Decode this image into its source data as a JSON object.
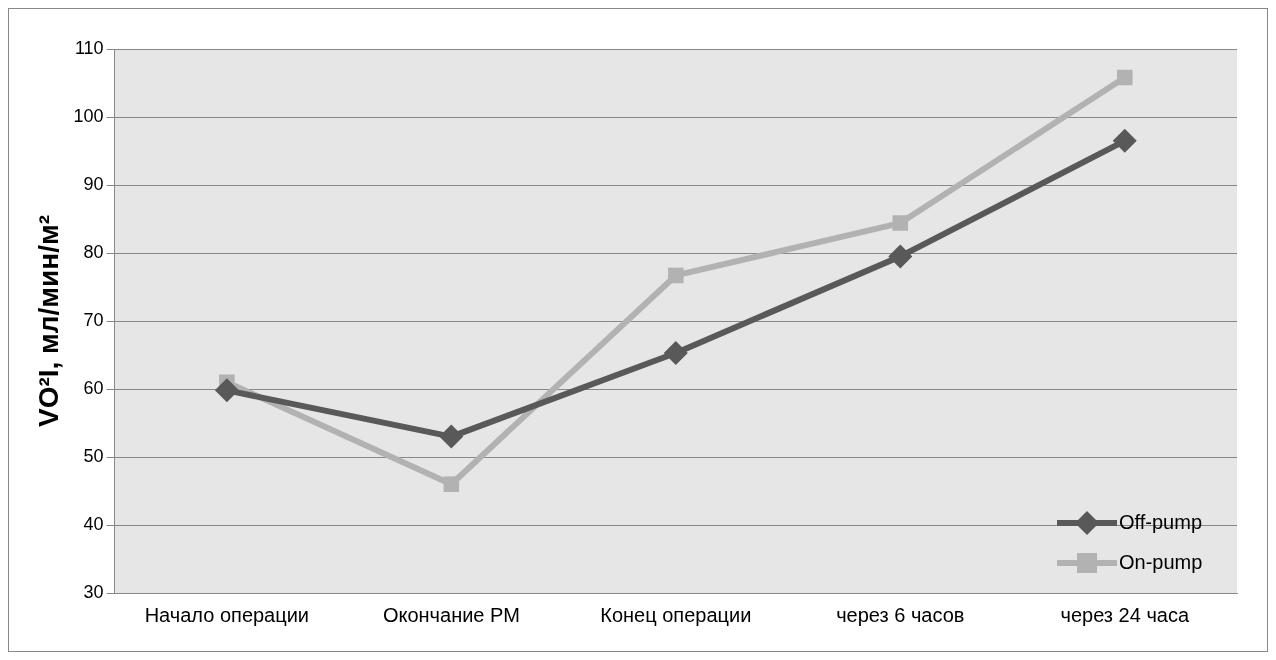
{
  "chart_data": {
    "type": "line",
    "ylabel": "VO²I, мл/мин/м²",
    "categories": [
      "Начало операции",
      "Окончание РМ",
      "Конец операции",
      "через 6 часов",
      "через 24 часа"
    ],
    "series": [
      {
        "name": "Off-pump",
        "color": "#595959",
        "marker": "diamond",
        "values": [
          59.8,
          53,
          65.3,
          79.5,
          96.5
        ]
      },
      {
        "name": "On-pump",
        "color": "#b2b2b2",
        "marker": "square",
        "values": [
          61,
          46,
          76.7,
          84.4,
          105.8
        ]
      }
    ],
    "ylim": [
      30,
      110
    ],
    "yticks": [
      30,
      40,
      50,
      60,
      70,
      80,
      90,
      100,
      110
    ],
    "grid": "y",
    "legend": "bottom right"
  }
}
